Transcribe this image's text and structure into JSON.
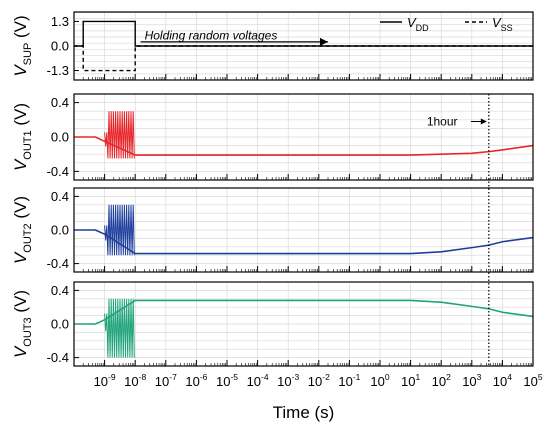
{
  "chart_data": [
    {
      "type": "line",
      "panel": "supply",
      "ylabel": "V",
      "ylabel_sub": "SUP",
      "ylabel_unit": "(V)",
      "yticks": [
        "1.3",
        "0.0",
        "-1.3"
      ],
      "ytick_values": [
        1.3,
        0.0,
        -1.3
      ],
      "ylim": [
        -1.8,
        1.8
      ],
      "annotation": "Holding random voltages",
      "legend": [
        {
          "main": "V",
          "sub": "DD",
          "style": "solid"
        },
        {
          "main": "V",
          "sub": "SS",
          "style": "dashed"
        }
      ],
      "legend_position": "top-right",
      "series": [
        {
          "name": "VDD",
          "style": "solid",
          "x": [
            1e-10,
            2e-10,
            2e-10,
            1e-08,
            1e-08,
            100000.0
          ],
          "y": [
            0,
            0,
            1.3,
            1.3,
            0,
            0
          ]
        },
        {
          "name": "VSS",
          "style": "dashed",
          "x": [
            1e-10,
            2e-10,
            2e-10,
            1e-08,
            1e-08,
            100000.0
          ],
          "y": [
            0,
            0,
            -1.3,
            -1.3,
            0,
            0
          ]
        }
      ]
    },
    {
      "type": "line",
      "panel": "out1",
      "color": "#e8262a",
      "ylabel": "V",
      "ylabel_sub": "OUT1",
      "ylabel_unit": "(V)",
      "yticks": [
        "0.4",
        "0.0",
        "-0.4"
      ],
      "ytick_values": [
        0.4,
        0.0,
        -0.4
      ],
      "ylim": [
        -0.5,
        0.5
      ],
      "annotation": "1hour",
      "oscillation": {
        "x_start": 1e-09,
        "x_end": 1e-08,
        "y_min": -0.25,
        "y_max": 0.3
      },
      "series": [
        {
          "x": [
            1e-10,
            5e-10,
            1e-09,
            1e-08,
            1e-06,
            0.001,
            1,
            10,
            100,
            1000,
            3600,
            10000,
            100000
          ],
          "y": [
            0.0,
            0.0,
            -0.05,
            -0.21,
            -0.21,
            -0.21,
            -0.21,
            -0.21,
            -0.2,
            -0.19,
            -0.17,
            -0.15,
            -0.1
          ]
        }
      ]
    },
    {
      "type": "line",
      "panel": "out2",
      "color": "#1f3f9e",
      "ylabel": "V",
      "ylabel_sub": "OUT2",
      "ylabel_unit": "(V)",
      "yticks": [
        "0.4",
        "0.0",
        "-0.4"
      ],
      "ytick_values": [
        0.4,
        0.0,
        -0.4
      ],
      "ylim": [
        -0.5,
        0.5
      ],
      "oscillation": {
        "x_start": 1e-09,
        "x_end": 1e-08,
        "y_min": -0.3,
        "y_max": 0.3
      },
      "series": [
        {
          "x": [
            1e-10,
            5e-10,
            1e-09,
            1e-08,
            1e-06,
            0.001,
            1,
            10,
            100,
            1000,
            3600,
            10000,
            100000
          ],
          "y": [
            0.0,
            0.0,
            -0.05,
            -0.28,
            -0.28,
            -0.28,
            -0.28,
            -0.28,
            -0.26,
            -0.21,
            -0.18,
            -0.14,
            -0.09
          ]
        }
      ]
    },
    {
      "type": "line",
      "panel": "out3",
      "color": "#1fa37a",
      "ylabel": "V",
      "ylabel_sub": "OUT3",
      "ylabel_unit": "(V)",
      "yticks": [
        "0.4",
        "0.0",
        "-0.4"
      ],
      "ytick_values": [
        0.4,
        0.0,
        -0.4
      ],
      "ylim": [
        -0.5,
        0.5
      ],
      "oscillation": {
        "x_start": 1e-09,
        "x_end": 1e-08,
        "y_min": -0.4,
        "y_max": 0.3
      },
      "series": [
        {
          "x": [
            1e-10,
            5e-10,
            1e-09,
            1e-08,
            1e-06,
            0.001,
            1,
            10,
            100,
            1000,
            3600,
            10000,
            100000
          ],
          "y": [
            0.0,
            0.0,
            0.05,
            0.28,
            0.28,
            0.28,
            0.28,
            0.28,
            0.26,
            0.21,
            0.18,
            0.14,
            0.09
          ]
        }
      ]
    }
  ],
  "x_axis": {
    "label": "Time (s)",
    "scale": "log",
    "xlim": [
      1e-10,
      100000.0
    ],
    "tick_exponents": [
      -9,
      -8,
      -7,
      -6,
      -5,
      -4,
      -3,
      -2,
      -1,
      0,
      1,
      2,
      3,
      4,
      5
    ],
    "tick_base": "10",
    "marker_line_x": 3600
  }
}
